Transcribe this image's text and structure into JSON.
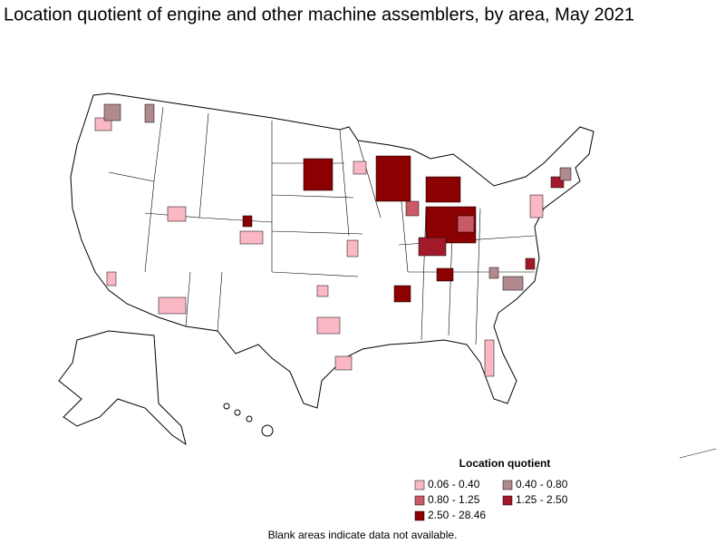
{
  "title": "Location quotient of engine and other machine assemblers, by area, May 2021",
  "legend": {
    "title": "Location quotient",
    "items": [
      {
        "label": "0.06 - 0.40",
        "color": "#f9b8c4"
      },
      {
        "label": "0.40 - 0.80",
        "color": "#b08a8e"
      },
      {
        "label": "0.80 - 1.25",
        "color": "#cc5a66"
      },
      {
        "label": "1.25 - 2.50",
        "color": "#a21a2a"
      },
      {
        "label": "2.50 - 28.46",
        "color": "#8b0000"
      }
    ]
  },
  "note": "Blank areas indicate data not available."
}
